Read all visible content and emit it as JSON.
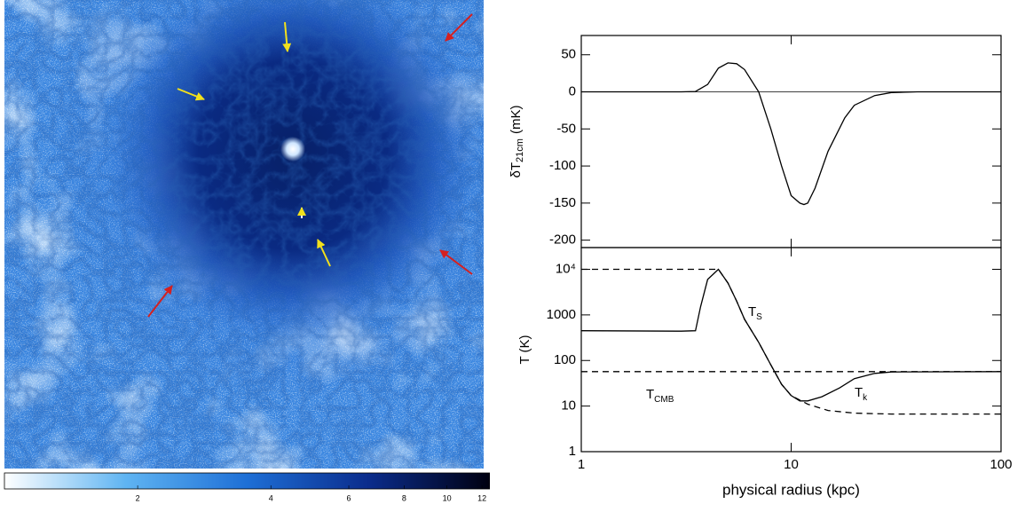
{
  "chart_data": [
    {
      "type": "image",
      "colorbar": {
        "clim": [
          1,
          12.5
        ],
        "log": true,
        "ticks": [
          2,
          4,
          6,
          8,
          10,
          12
        ],
        "colors": [
          "#ffffff",
          "#5fb4f2",
          "#1e6fd6",
          "#0b2c8c",
          "#000010"
        ]
      }
    },
    {
      "type": "line",
      "ylabel": [
        "δT",
        "21cm",
        "(mK)"
      ],
      "xlim": [
        1,
        100
      ],
      "xlog": true,
      "xticks": [
        1,
        10,
        100
      ],
      "ylim": [
        -210,
        76
      ],
      "yticks": [
        -200,
        -150,
        -100,
        -50,
        0,
        50
      ],
      "hline": 0,
      "series": [
        {
          "color": "#000",
          "style": "solid",
          "x": [
            1,
            2,
            3,
            3.5,
            4,
            4.5,
            5,
            5.5,
            6,
            7,
            8,
            9,
            10,
            11,
            11.5,
            12,
            13,
            15,
            18,
            20,
            25,
            30,
            40,
            50,
            100
          ],
          "values": [
            0,
            0,
            0,
            0.5,
            10,
            32,
            39,
            38,
            30,
            0,
            -50,
            -100,
            -140,
            -150,
            -152,
            -150,
            -130,
            -80,
            -35,
            -18,
            -5,
            -1,
            0,
            0,
            0
          ]
        }
      ]
    },
    {
      "type": "line",
      "ylabel": "T (K)",
      "xlabel": "physical radius (kpc)",
      "xlim": [
        1,
        100
      ],
      "xlog": true,
      "xticks": [
        1,
        10,
        100
      ],
      "ylim": [
        1,
        30000
      ],
      "ylog": true,
      "yticks": [
        1,
        10,
        100,
        1000,
        {
          "value": 10000,
          "label": "10⁴"
        }
      ],
      "series": [
        {
          "color": "#000",
          "style": "solid",
          "x": [
            1,
            3,
            3.5,
            3.7,
            4,
            4.5,
            5,
            5.5,
            6,
            7,
            8,
            9,
            10,
            11,
            12,
            14,
            17,
            20,
            25,
            30,
            100
          ],
          "values": [
            450,
            440,
            450,
            1500,
            6000,
            10000,
            5000,
            2000,
            800,
            250,
            80,
            30,
            17,
            13,
            13,
            16,
            25,
            40,
            52,
            56,
            57
          ]
        },
        {
          "color": "#000",
          "style": "dashed",
          "x": [
            1,
            4.5,
            5,
            5.5,
            6,
            7,
            8,
            9,
            10,
            12,
            15,
            20,
            30,
            100
          ],
          "values": [
            10000,
            10000,
            5000,
            2000,
            800,
            250,
            80,
            30,
            17,
            11,
            8,
            7,
            6.7,
            6.7
          ]
        },
        {
          "color": "#000",
          "style": "dashed",
          "x": [
            1,
            100
          ],
          "values": [
            57,
            57
          ]
        }
      ],
      "annotations": [
        {
          "text": "T",
          "sub": "S"
        },
        {
          "text": "T",
          "sub": "CMB"
        },
        {
          "text": "T",
          "sub": "k"
        }
      ]
    }
  ]
}
